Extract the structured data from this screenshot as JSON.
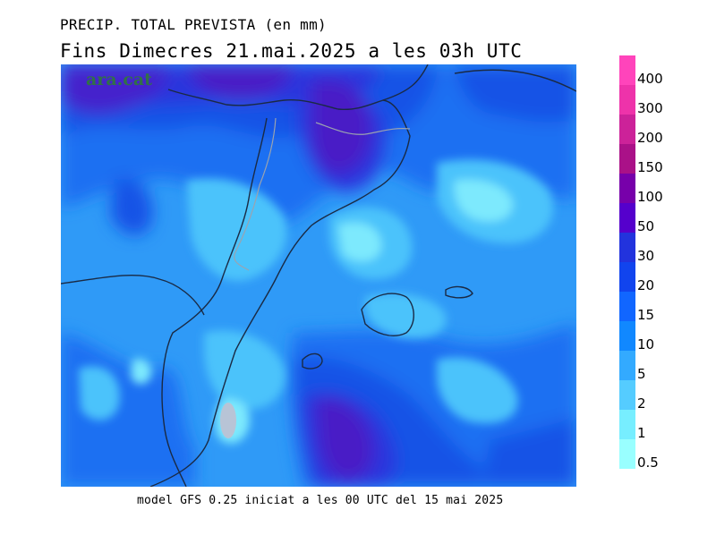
{
  "title_line1": "PRECIP. TOTAL PREVISTA (en mm)",
  "title_line2": "Fins Dimecres  21.mai.2025  a les 03h  UTC",
  "watermark": "ara.cat",
  "footer": "model GFS 0.25 iniciat a les 00 UTC del 15 mai 2025",
  "legend": {
    "items": [
      {
        "label": "400",
        "color": "#ff44bb"
      },
      {
        "label": "300",
        "color": "#ee33aa"
      },
      {
        "label": "200",
        "color": "#cc2299"
      },
      {
        "label": "150",
        "color": "#aa1188"
      },
      {
        "label": "100",
        "color": "#7700aa"
      },
      {
        "label": "50",
        "color": "#5500cc"
      },
      {
        "label": "30",
        "color": "#2233dd"
      },
      {
        "label": "20",
        "color": "#1144ee"
      },
      {
        "label": "15",
        "color": "#1166ff"
      },
      {
        "label": "10",
        "color": "#1188ff"
      },
      {
        "label": "5",
        "color": "#33aaff"
      },
      {
        "label": "2",
        "color": "#55ccff"
      },
      {
        "label": "1",
        "color": "#77eeff"
      },
      {
        "label": "0.5",
        "color": "#99ffff"
      }
    ]
  }
}
